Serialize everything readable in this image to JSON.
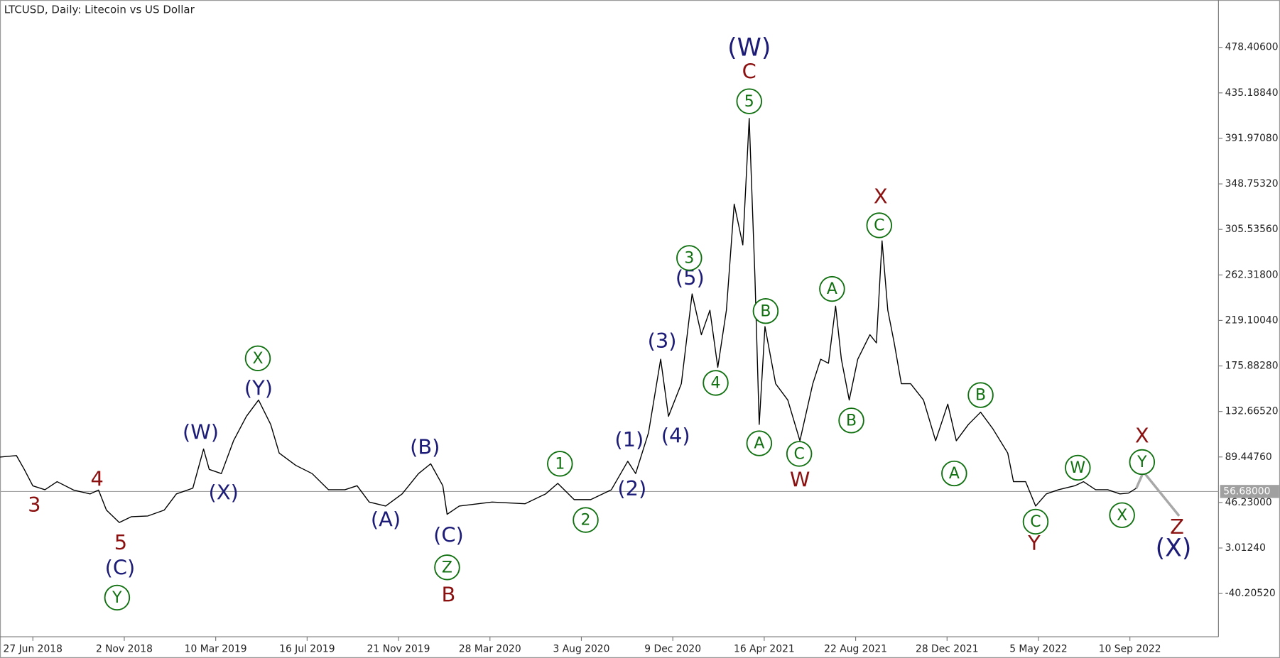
{
  "chart_data": {
    "type": "line",
    "title": "LTCUSD, Daily:  Litecoin vs US Dollar",
    "color": "#000000",
    "x": [
      "2018-05-12",
      "2018-06-04",
      "2018-06-15",
      "2018-06-27",
      "2018-07-14",
      "2018-07-31",
      "2018-08-23",
      "2018-09-15",
      "2018-09-27",
      "2018-10-08",
      "2018-10-26",
      "2018-11-12",
      "2018-12-05",
      "2018-12-28",
      "2019-01-14",
      "2019-02-06",
      "2019-02-21",
      "2019-03-01",
      "2019-03-18",
      "2019-04-04",
      "2019-04-22",
      "2019-05-09",
      "2019-05-26",
      "2019-06-07",
      "2019-06-30",
      "2019-07-23",
      "2019-08-15",
      "2019-09-07",
      "2019-09-24",
      "2019-10-11",
      "2019-11-03",
      "2019-11-26",
      "2019-12-19",
      "2020-01-05",
      "2020-01-22",
      "2020-01-28",
      "2020-02-14",
      "2020-03-31",
      "2020-05-16",
      "2020-06-14",
      "2020-07-01",
      "2020-07-24",
      "2020-08-16",
      "2020-09-14",
      "2020-10-07",
      "2020-10-18",
      "2020-11-05",
      "2020-11-22",
      "2020-12-03",
      "2020-12-21",
      "2021-01-05",
      "2021-01-18",
      "2021-01-30",
      "2021-02-10",
      "2021-02-22",
      "2021-03-05",
      "2021-03-17",
      "2021-03-26",
      "2021-04-03",
      "2021-04-09",
      "2021-04-17",
      "2021-05-02",
      "2021-05-19",
      "2021-06-05",
      "2021-06-23",
      "2021-07-04",
      "2021-07-15",
      "2021-07-25",
      "2021-08-02",
      "2021-08-13",
      "2021-08-25",
      "2021-09-11",
      "2021-09-20",
      "2021-09-28",
      "2021-10-06",
      "2021-10-15",
      "2021-10-25",
      "2021-11-07",
      "2021-11-25",
      "2021-12-12",
      "2021-12-29",
      "2022-01-10",
      "2022-01-27",
      "2022-02-13",
      "2022-03-02",
      "2022-03-23",
      "2022-03-31",
      "2022-04-17",
      "2022-05-01",
      "2022-05-16",
      "2022-06-02",
      "2022-06-25",
      "2022-07-07",
      "2022-07-24",
      "2022-08-10",
      "2022-08-27",
      "2022-09-08",
      "2022-09-19"
    ],
    "values": [
      89.3,
      90.8,
      77.6,
      62.0,
      58.3,
      66.0,
      58.0,
      54.4,
      58.0,
      39.0,
      27.2,
      32.7,
      33.4,
      39.0,
      54.4,
      59.8,
      97.0,
      77.6,
      73.7,
      104.8,
      128.0,
      143.5,
      120.3,
      93.1,
      81.5,
      73.7,
      58.3,
      58.3,
      62.1,
      46.6,
      42.8,
      54.4,
      73.7,
      83.0,
      62.1,
      35.0,
      42.8,
      46.6,
      45.0,
      54.4,
      64.4,
      48.9,
      48.9,
      58.3,
      85.4,
      73.7,
      112.5,
      182.3,
      128.0,
      159.0,
      244.3,
      205.5,
      228.8,
      174.5,
      228.8,
      329.6,
      290.8,
      411.0,
      259.8,
      120.3,
      213.3,
      159.0,
      143.5,
      104.8,
      159.0,
      182.3,
      178.4,
      232.7,
      182.3,
      143.5,
      182.3,
      205.5,
      197.8,
      294.7,
      228.8,
      197.8,
      159.0,
      159.0,
      143.5,
      104.8,
      139.6,
      104.8,
      120.3,
      132.0,
      116.4,
      93.1,
      66.0,
      66.0,
      42.8,
      54.4,
      58.3,
      62.1,
      66.0,
      58.3,
      58.3,
      54.4,
      55.1,
      59.8
    ],
    "projection": {
      "color": "#a8a8a8",
      "x": [
        "2022-09-19",
        "2022-09-29",
        "2022-11-18"
      ],
      "y": [
        59.8,
        75.3,
        33.4
      ]
    },
    "last_price": {
      "value": 56.68,
      "label": "56.68000"
    },
    "xlim": [
      "2018-05-12",
      "2023-01-12"
    ],
    "xticks": [
      {
        "value": "2018-06-27",
        "label": "27 Jun 2018"
      },
      {
        "value": "2018-11-02",
        "label": "2 Nov 2018"
      },
      {
        "value": "2019-03-10",
        "label": "10 Mar 2019"
      },
      {
        "value": "2019-07-16",
        "label": "16 Jul 2019"
      },
      {
        "value": "2019-11-21",
        "label": "21 Nov 2019"
      },
      {
        "value": "2020-03-28",
        "label": "28 Mar 2020"
      },
      {
        "value": "2020-08-03",
        "label": "3 Aug 2020"
      },
      {
        "value": "2020-12-09",
        "label": "9 Dec 2020"
      },
      {
        "value": "2021-04-16",
        "label": "16 Apr 2021"
      },
      {
        "value": "2021-08-22",
        "label": "22 Aug 2021"
      },
      {
        "value": "2021-12-28",
        "label": "28 Dec 2021"
      },
      {
        "value": "2022-05-05",
        "label": "5 May 2022"
      },
      {
        "value": "2022-09-10",
        "label": "10 Sep 2022"
      }
    ],
    "ylim": [
      -81.3,
      523.37
    ],
    "yticks": [
      {
        "value": 478.406,
        "label": "478.40600"
      },
      {
        "value": 435.1884,
        "label": "435.18840"
      },
      {
        "value": 391.9708,
        "label": "391.97080"
      },
      {
        "value": 348.7532,
        "label": "348.75320"
      },
      {
        "value": 305.5356,
        "label": "305.53560"
      },
      {
        "value": 262.318,
        "label": "262.31800"
      },
      {
        "value": 219.1004,
        "label": "219.10040"
      },
      {
        "value": 175.8828,
        "label": "175.88280"
      },
      {
        "value": 132.6652,
        "label": "132.66520"
      },
      {
        "value": 89.4476,
        "label": "89.44760"
      },
      {
        "value": 46.23,
        "label": "46.23000"
      },
      {
        "value": 3.0124,
        "label": "3.01240"
      },
      {
        "value": -40.2052,
        "label": "-40.20520"
      }
    ],
    "annotations": [
      {
        "text": "3",
        "x": "2018-06-29",
        "y": 42.8,
        "color": "#8b1010",
        "circled": false
      },
      {
        "text": "4",
        "x": "2018-09-25",
        "y": 67.5,
        "color": "#8b1010",
        "circled": false
      },
      {
        "text": "5",
        "x": "2018-10-28",
        "y": 7.1,
        "color": "#8b1010",
        "circled": false
      },
      {
        "text": "(C)",
        "x": "2018-10-27",
        "y": -16.9,
        "color": "#1c1c78",
        "circled": false
      },
      {
        "text": "Y",
        "x": "2018-10-23",
        "y": -44.1,
        "color": "#107010",
        "circled": true
      },
      {
        "text": "(W)",
        "x": "2019-02-17",
        "y": 111.7,
        "color": "#1c1c78",
        "circled": false
      },
      {
        "text": "(X)",
        "x": "2019-03-21",
        "y": 54.4,
        "color": "#1c1c78",
        "circled": false
      },
      {
        "text": "(Y)",
        "x": "2019-05-09",
        "y": 153.6,
        "color": "#1c1c78",
        "circled": false
      },
      {
        "text": "X",
        "x": "2019-05-08",
        "y": 183.1,
        "color": "#107010",
        "circled": true
      },
      {
        "text": "(A)",
        "x": "2019-11-03",
        "y": 28.8,
        "color": "#1c1c78",
        "circled": false
      },
      {
        "text": "(B)",
        "x": "2019-12-28",
        "y": 97.8,
        "color": "#1c1c78",
        "circled": false
      },
      {
        "text": "(C)",
        "x": "2020-01-30",
        "y": 14.0,
        "color": "#1c1c78",
        "circled": false
      },
      {
        "text": "Z",
        "x": "2020-01-28",
        "y": -15.4,
        "color": "#107010",
        "circled": true
      },
      {
        "text": "B",
        "x": "2020-01-30",
        "y": -42.5,
        "color": "#8b1010",
        "circled": false
      },
      {
        "text": "1",
        "x": "2020-07-04",
        "y": 83.0,
        "color": "#107010",
        "circled": true
      },
      {
        "text": "2",
        "x": "2020-08-09",
        "y": 29.6,
        "color": "#107010",
        "circled": true
      },
      {
        "text": "(1)",
        "x": "2020-10-09",
        "y": 104.8,
        "color": "#1c1c78",
        "circled": false
      },
      {
        "text": "(2)",
        "x": "2020-10-13",
        "y": 58.3,
        "color": "#1c1c78",
        "circled": false
      },
      {
        "text": "(3)",
        "x": "2020-11-24",
        "y": 198.6,
        "color": "#1c1c78",
        "circled": false
      },
      {
        "text": "(4)",
        "x": "2020-12-13",
        "y": 108.6,
        "color": "#1c1c78",
        "circled": false
      },
      {
        "text": "(5)",
        "x": "2021-01-02",
        "y": 258.3,
        "color": "#1c1c78",
        "circled": false
      },
      {
        "text": "3",
        "x": "2021-01-01",
        "y": 278.4,
        "color": "#107010",
        "circled": true
      },
      {
        "text": "4",
        "x": "2021-02-07",
        "y": 159.8,
        "color": "#107010",
        "circled": true
      },
      {
        "text": "(W)",
        "x": "2021-03-26",
        "y": 476.9,
        "color": "#1c1c78",
        "circled": false
      },
      {
        "text": "C",
        "x": "2021-03-26",
        "y": 454.4,
        "color": "#8b1010",
        "circled": false
      },
      {
        "text": "5",
        "x": "2021-03-26",
        "y": 427.2,
        "color": "#107010",
        "circled": true
      },
      {
        "text": "B",
        "x": "2021-04-18",
        "y": 228.0,
        "color": "#107010",
        "circled": true
      },
      {
        "text": "A",
        "x": "2021-04-09",
        "y": 102.4,
        "color": "#107010",
        "circled": true
      },
      {
        "text": "C",
        "x": "2021-06-04",
        "y": 92.4,
        "color": "#107010",
        "circled": true
      },
      {
        "text": "W",
        "x": "2021-06-05",
        "y": 66.8,
        "color": "#8b1010",
        "circled": false
      },
      {
        "text": "A",
        "x": "2021-07-20",
        "y": 249.0,
        "color": "#107010",
        "circled": true
      },
      {
        "text": "B",
        "x": "2021-08-16",
        "y": 124.1,
        "color": "#107010",
        "circled": true
      },
      {
        "text": "X",
        "x": "2021-09-26",
        "y": 335.8,
        "color": "#8b1010",
        "circled": false
      },
      {
        "text": "C",
        "x": "2021-09-24",
        "y": 309.4,
        "color": "#107010",
        "circled": true
      },
      {
        "text": "A",
        "x": "2022-01-07",
        "y": 73.8,
        "color": "#107010",
        "circled": true
      },
      {
        "text": "B",
        "x": "2022-02-13",
        "y": 148.2,
        "color": "#107010",
        "circled": true
      },
      {
        "text": "C",
        "x": "2022-05-01",
        "y": 28.0,
        "color": "#107010",
        "circled": true
      },
      {
        "text": "Y",
        "x": "2022-04-29",
        "y": 6.3,
        "color": "#8b1010",
        "circled": false
      },
      {
        "text": "W",
        "x": "2022-06-29",
        "y": 79.2,
        "color": "#107010",
        "circled": true
      },
      {
        "text": "X",
        "x": "2022-08-30",
        "y": 34.2,
        "color": "#107010",
        "circled": true
      },
      {
        "text": "Y",
        "x": "2022-09-27",
        "y": 84.6,
        "color": "#107010",
        "circled": true
      },
      {
        "text": "X",
        "x": "2022-09-27",
        "y": 108.6,
        "color": "#8b1010",
        "circled": false
      },
      {
        "text": "Z",
        "x": "2022-11-15",
        "y": 21.8,
        "color": "#8b1010",
        "circled": false
      },
      {
        "text": "(X)",
        "x": "2022-11-10",
        "y": 1.6,
        "color": "#1c1c78",
        "circled": false
      }
    ]
  }
}
